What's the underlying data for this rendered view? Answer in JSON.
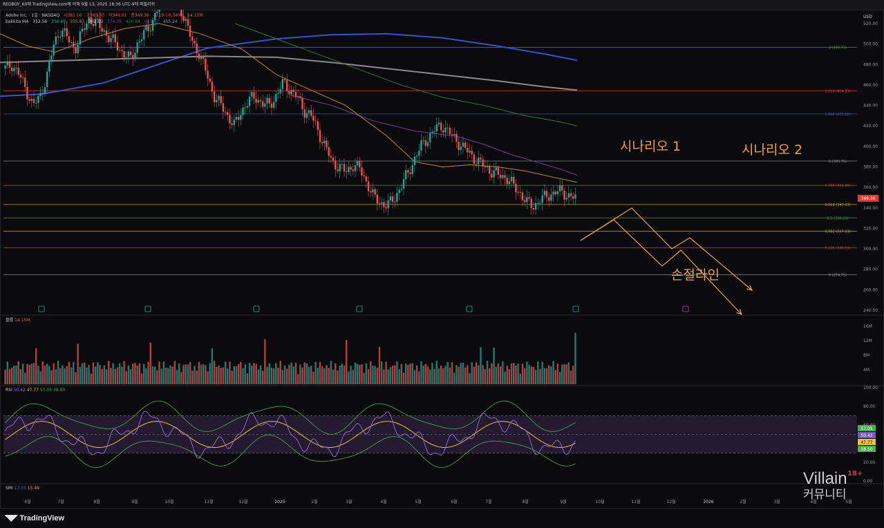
{
  "window": {
    "title": "REDBOY_K0에 TradingView.com에 의해 9월 13, 2025 18:36 UTC-9에 퍼블리쉬"
  },
  "header": {
    "symbol_line": [
      "Adobe Inc. · 1일 · NASDAQ",
      "시361.10",
      "고365.50",
      "저349.01",
      "종349.36",
      "-1.19 (-0.34%)",
      "14.15M"
    ],
    "ma_line": [
      "bakkita MA",
      "352.56",
      "356.69",
      "355.87",
      "362.03",
      "374.39",
      "420.84",
      "483.57",
      "455.24"
    ],
    "volume_label": [
      "볼륨",
      "14.15M"
    ],
    "rsi_label": [
      "RSI",
      "50.42",
      "47.77",
      "57.05",
      "38.50"
    ],
    "smi_label": [
      "SMI",
      "17.55",
      "15.49"
    ],
    "currency": "USD"
  },
  "annotations": {
    "scenario1": "시나리오 1",
    "scenario2": "시나리오 2",
    "stop_line": "손절라인"
  },
  "watermark": {
    "brand": "Villain",
    "sub": "커뮤니티",
    "age": "18+"
  },
  "logo": {
    "text": "TradingView"
  },
  "colors": {
    "up": "#26a69a",
    "down": "#ef5350",
    "orange": "#f0a04b",
    "rsi_band": "#2b1f3a"
  },
  "chart_data": [
    {
      "type": "candlestick",
      "title": "",
      "currency": "USD",
      "ylim": [
        240,
        525
      ],
      "y_ticks": [
        "240.00",
        "260.00",
        "280.00",
        "300.00",
        "320.00",
        "340.00",
        "360.00",
        "380.00",
        "400.00",
        "420.00",
        "440.00",
        "460.00",
        "480.00",
        "500.00",
        "520.00"
      ],
      "x_ticks": [
        "6월",
        "7월",
        "8월",
        "9월",
        "10월",
        "11월",
        "12월",
        "2025",
        "2월",
        "3월",
        "4월",
        "5월",
        "6월",
        "7월",
        "8월",
        "9월",
        "10월",
        "11월",
        "12월",
        "2026",
        "2월",
        "3월",
        "4월",
        "5월"
      ],
      "last_price": "349.36",
      "fib_levels": [
        {
          "label": "1 (385.75)",
          "value": 385.75,
          "color": "#8a8a8a"
        },
        {
          "label": "1.618 (454.33)",
          "value": 454.33,
          "color": "#c23a3a"
        },
        {
          "label": "1.414 (431.68)",
          "value": 431.68,
          "color": "#3a55a8"
        },
        {
          "label": "2 (496.73)",
          "value": 496.73,
          "color": "#5a8a3a"
        },
        {
          "label": "0.786 (361.98)",
          "value": 361.98,
          "color": "#c23a3a"
        },
        {
          "label": "0.618 (343.33)",
          "value": 343.33,
          "color": "#c9962a"
        },
        {
          "label": "0.5 (330.23)",
          "value": 330.23,
          "color": "#3a9a4a"
        },
        {
          "label": "0.382 (317.13)",
          "value": 317.13,
          "color": "#c9962a"
        },
        {
          "label": "0.236 (300.93)",
          "value": 300.93,
          "color": "#c23a3a"
        },
        {
          "label": "0 (274.75)",
          "value": 274.75,
          "color": "#8a8a8a"
        }
      ],
      "close_path": [
        476,
        480,
        470,
        455,
        440,
        448,
        470,
        500,
        515,
        505,
        495,
        510,
        525,
        520,
        515,
        505,
        500,
        490,
        485,
        500,
        510,
        520,
        535,
        545,
        555,
        540,
        520,
        500,
        490,
        470,
        450,
        440,
        430,
        420,
        435,
        445,
        448,
        442,
        440,
        450,
        462,
        455,
        448,
        435,
        430,
        415,
        400,
        385,
        380,
        375,
        382,
        378,
        365,
        350,
        345,
        342,
        350,
        362,
        375,
        390,
        402,
        410,
        418,
        420,
        412,
        405,
        398,
        392,
        385,
        380,
        375,
        372,
        370,
        362,
        355,
        345,
        342,
        348,
        352,
        355,
        356,
        352,
        349
      ],
      "ma_lines": [
        {
          "name": "",
          "color": "#3a52c8",
          "points": [
            [
              0,
              449
            ],
            [
              60,
              451
            ],
            [
              150,
              462
            ],
            [
              220,
              478
            ],
            [
              300,
              496
            ],
            [
              400,
              505
            ],
            [
              480,
              509
            ],
            [
              560,
              510
            ],
            [
              640,
              506
            ],
            [
              720,
              498
            ],
            [
              790,
              490
            ],
            [
              835,
              484
            ]
          ]
        },
        {
          "name": "",
          "color": "#8a8a8a",
          "points": [
            [
              0,
              482
            ],
            [
              100,
              484
            ],
            [
              200,
              486
            ],
            [
              300,
              488
            ],
            [
              400,
              487
            ],
            [
              480,
              482
            ],
            [
              560,
              476
            ],
            [
              640,
              470
            ],
            [
              720,
              464
            ],
            [
              790,
              458
            ],
            [
              835,
              455
            ]
          ]
        },
        {
          "name": "",
          "color": "#2f7a3a",
          "points": [
            [
              340,
              520
            ],
            [
              400,
              505
            ],
            [
              460,
              490
            ],
            [
              520,
              475
            ],
            [
              580,
              460
            ],
            [
              640,
              448
            ],
            [
              700,
              440
            ],
            [
              760,
              430
            ],
            [
              810,
              424
            ],
            [
              835,
              420
            ]
          ]
        },
        {
          "name": "",
          "color": "#7a3a9a",
          "points": [
            [
              420,
              450
            ],
            [
              480,
              440
            ],
            [
              540,
              425
            ],
            [
              600,
              415
            ],
            [
              660,
              410
            ],
            [
              700,
              402
            ],
            [
              740,
              392
            ],
            [
              780,
              384
            ],
            [
              810,
              378
            ],
            [
              835,
              372
            ]
          ]
        },
        {
          "name": "",
          "color": "#c08a2a",
          "points": [
            [
              0,
              510
            ],
            [
              40,
              498
            ],
            [
              80,
              492
            ],
            [
              130,
              505
            ],
            [
              180,
              515
            ],
            [
              230,
              520
            ],
            [
              290,
              510
            ],
            [
              350,
              495
            ],
            [
              400,
              470
            ],
            [
              450,
              455
            ],
            [
              500,
              440
            ],
            [
              560,
              410
            ],
            [
              600,
              385
            ],
            [
              640,
              380
            ],
            [
              680,
              382
            ],
            [
              720,
              380
            ],
            [
              760,
              376
            ],
            [
              800,
              370
            ],
            [
              835,
              365
            ]
          ]
        }
      ],
      "scenario_paths": [
        {
          "name": "시나리오 1",
          "points": [
            [
              840,
              348
            ],
            [
              888,
              318
            ],
            [
              958,
              385
            ],
            [
              985,
              362
            ],
            [
              1073,
              455
            ]
          ]
        },
        {
          "name": "시나리오 2",
          "points": [
            [
              840,
              348
            ],
            [
              914,
              301
            ],
            [
              972,
              360
            ],
            [
              998,
              344
            ],
            [
              1088,
              420
            ]
          ]
        }
      ]
    },
    {
      "type": "bar",
      "title": "볼륨",
      "y_ticks": [
        "4M",
        "8M",
        "12M",
        "16M"
      ],
      "last": "14.15M"
    },
    {
      "type": "line",
      "title": "RSI",
      "ylim": [
        0,
        100
      ],
      "y_ticks": [
        "0.00",
        "20.00",
        "40.00",
        "60.00",
        "80.00",
        "100.00"
      ],
      "bands": [
        30,
        50,
        70
      ],
      "values": {
        "rsi": "50.42",
        "ma": "47.77",
        "upper": "57.05",
        "lower": "38.50"
      }
    }
  ]
}
